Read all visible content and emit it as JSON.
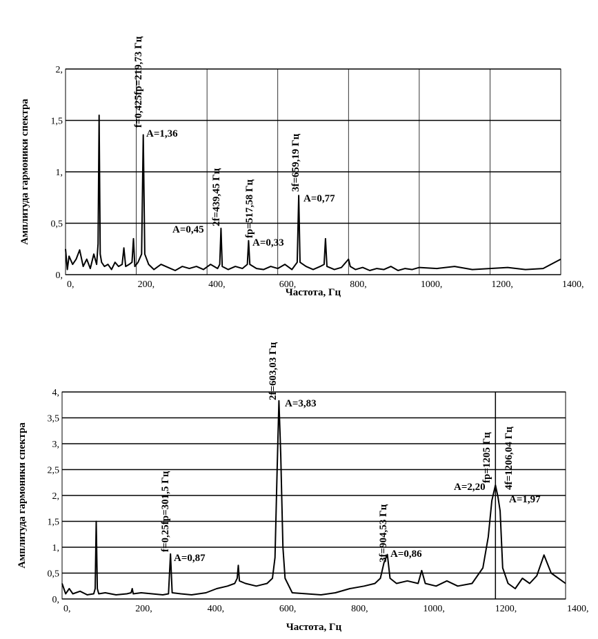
{
  "chart_data": [
    {
      "type": "line",
      "xlabel": "Частота, Гц",
      "ylabel": "Амплитуда гармоники спектра",
      "color": "#000000",
      "grid": "both",
      "xlim": [
        0,
        1400
      ],
      "xticks": [
        {
          "value": 0,
          "label": "0,"
        },
        {
          "value": 200,
          "label": "200,"
        },
        {
          "value": 400,
          "label": "400,"
        },
        {
          "value": 600,
          "label": "600,"
        },
        {
          "value": 800,
          "label": "800,"
        },
        {
          "value": 1000,
          "label": "1000,"
        },
        {
          "value": 1200,
          "label": "1200,"
        },
        {
          "value": 1400,
          "label": "1400,"
        }
      ],
      "ylim": [
        0,
        2
      ],
      "yticks": [
        {
          "value": 0,
          "label": "0,"
        },
        {
          "value": 0.5,
          "label": "0,5"
        },
        {
          "value": 1,
          "label": "1,"
        },
        {
          "value": 1.5,
          "label": "1,5"
        },
        {
          "value": 2,
          "label": "2,"
        }
      ],
      "x": [
        0,
        5,
        10,
        20,
        30,
        40,
        50,
        60,
        70,
        80,
        88,
        92,
        95,
        98,
        102,
        110,
        120,
        130,
        140,
        150,
        160,
        165,
        170,
        180,
        188,
        192,
        196,
        205,
        215,
        219.73,
        224,
        235,
        250,
        270,
        290,
        310,
        330,
        350,
        370,
        390,
        410,
        430,
        436,
        439.45,
        443,
        460,
        480,
        500,
        514,
        517.58,
        521,
        540,
        560,
        580,
        600,
        620,
        640,
        655,
        659.19,
        663,
        680,
        700,
        720,
        731,
        735,
        739,
        760,
        780,
        800,
        805,
        820,
        840,
        860,
        880,
        900,
        920,
        940,
        960,
        980,
        1000,
        1050,
        1100,
        1150,
        1200,
        1250,
        1300,
        1350,
        1400
      ],
      "values": [
        0.25,
        0.05,
        0.18,
        0.1,
        0.15,
        0.24,
        0.08,
        0.15,
        0.06,
        0.2,
        0.1,
        0.3,
        1.55,
        0.2,
        0.12,
        0.08,
        0.1,
        0.05,
        0.12,
        0.08,
        0.1,
        0.26,
        0.08,
        0.1,
        0.12,
        0.35,
        0.08,
        0.12,
        0.2,
        1.36,
        0.2,
        0.1,
        0.05,
        0.1,
        0.07,
        0.04,
        0.08,
        0.06,
        0.08,
        0.05,
        0.1,
        0.06,
        0.1,
        0.45,
        0.08,
        0.05,
        0.08,
        0.06,
        0.1,
        0.33,
        0.1,
        0.06,
        0.05,
        0.08,
        0.06,
        0.1,
        0.05,
        0.12,
        0.77,
        0.12,
        0.08,
        0.05,
        0.08,
        0.1,
        0.35,
        0.08,
        0.05,
        0.07,
        0.15,
        0.08,
        0.05,
        0.07,
        0.04,
        0.06,
        0.05,
        0.08,
        0.04,
        0.06,
        0.05,
        0.07,
        0.06,
        0.08,
        0.05,
        0.06,
        0.07,
        0.05,
        0.06,
        0.15
      ],
      "annotations": [
        "f=0,425fр=219,73 Гц",
        "A=1,36",
        "2f=439,45 Гц",
        "A=0,45",
        "fр=517,58 Гц",
        "A=0,33",
        "3f=659,19 Гц",
        "A=0,77"
      ]
    },
    {
      "type": "line",
      "xlabel": "Частота, Гц",
      "ylabel": "Амплитуда гармоники спектра",
      "color": "#000000",
      "grid": "y",
      "reference_line_x": 1205,
      "xlim": [
        0,
        1400
      ],
      "xticks": [
        {
          "value": 0,
          "label": "0,"
        },
        {
          "value": 200,
          "label": "200,"
        },
        {
          "value": 400,
          "label": "400,"
        },
        {
          "value": 600,
          "label": "600,"
        },
        {
          "value": 800,
          "label": "800,"
        },
        {
          "value": 1000,
          "label": "1000,"
        },
        {
          "value": 1200,
          "label": "1200,"
        },
        {
          "value": 1400,
          "label": "1400,"
        }
      ],
      "ylim": [
        0,
        4
      ],
      "yticks": [
        {
          "value": 0,
          "label": "0,"
        },
        {
          "value": 0.5,
          "label": "0,5"
        },
        {
          "value": 1,
          "label": "1,"
        },
        {
          "value": 1.5,
          "label": "1,5"
        },
        {
          "value": 2,
          "label": "2,"
        },
        {
          "value": 2.5,
          "label": "2,5"
        },
        {
          "value": 3,
          "label": "3,"
        },
        {
          "value": 3.5,
          "label": "3,5"
        },
        {
          "value": 4,
          "label": "4,"
        }
      ],
      "x": [
        0,
        10,
        20,
        30,
        50,
        70,
        88,
        92,
        95,
        98,
        102,
        120,
        150,
        180,
        192,
        195,
        198,
        220,
        250,
        280,
        296,
        301.5,
        306,
        330,
        360,
        400,
        430,
        460,
        480,
        487,
        490,
        493,
        510,
        540,
        570,
        585,
        592,
        598,
        603.03,
        608,
        614,
        620,
        640,
        680,
        720,
        760,
        800,
        840,
        870,
        885,
        895,
        904.53,
        912,
        930,
        960,
        990,
        1000,
        1010,
        1040,
        1070,
        1100,
        1140,
        1170,
        1185,
        1195,
        1205,
        1212,
        1218,
        1225,
        1240,
        1260,
        1280,
        1300,
        1320,
        1340,
        1360,
        1380,
        1400
      ],
      "values": [
        0.3,
        0.1,
        0.2,
        0.1,
        0.15,
        0.08,
        0.1,
        0.2,
        1.5,
        0.2,
        0.1,
        0.12,
        0.08,
        0.1,
        0.12,
        0.2,
        0.1,
        0.12,
        0.1,
        0.08,
        0.1,
        0.87,
        0.12,
        0.1,
        0.08,
        0.12,
        0.2,
        0.25,
        0.3,
        0.4,
        0.65,
        0.35,
        0.3,
        0.25,
        0.3,
        0.4,
        0.8,
        2.5,
        3.83,
        2.8,
        1.0,
        0.4,
        0.12,
        0.1,
        0.08,
        0.12,
        0.2,
        0.25,
        0.3,
        0.4,
        0.7,
        0.86,
        0.4,
        0.3,
        0.35,
        0.3,
        0.55,
        0.3,
        0.25,
        0.35,
        0.25,
        0.3,
        0.6,
        1.2,
        1.9,
        2.2,
        1.97,
        1.7,
        0.6,
        0.3,
        0.2,
        0.4,
        0.3,
        0.45,
        0.85,
        0.5,
        0.4,
        0.3
      ],
      "annotations": [
        "2f=603,03 Гц",
        "A=3,83",
        "f=0,25fр=301,5 Гц",
        "A=0,87",
        "3f=904,53 Гц",
        "A=0,86",
        "fр=1205 Гц",
        "A=2,20",
        "4f=1206,04 Гц",
        "A=1,97"
      ]
    }
  ]
}
